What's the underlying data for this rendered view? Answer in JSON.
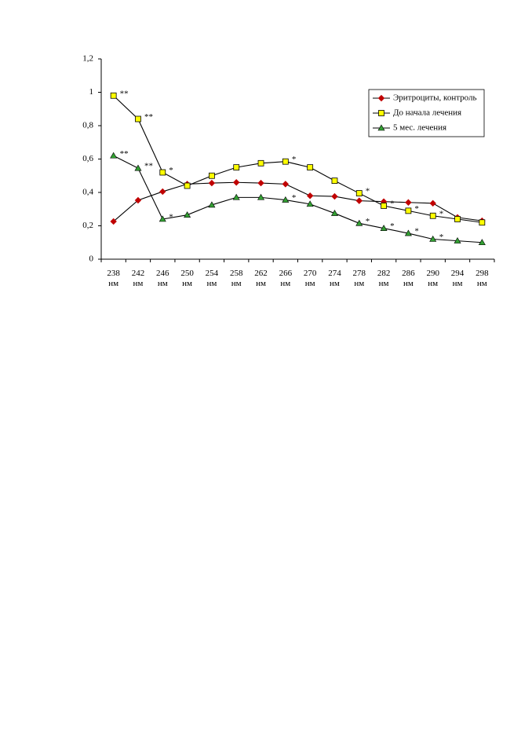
{
  "chart_data": {
    "type": "line",
    "categories": [
      "238 нм",
      "242 нм",
      "246 нм",
      "250 нм",
      "254 нм",
      "258 нм",
      "262 нм",
      "266 нм",
      "270 нм",
      "274 нм",
      "278 нм",
      "282 нм",
      "286 нм",
      "290 нм",
      "294 нм",
      "298 нм"
    ],
    "ylim": [
      0,
      1.2
    ],
    "yticks": [
      0,
      {
        "value": 0.2,
        "label": "0,2"
      },
      {
        "value": 0.4,
        "label": "0,4"
      },
      {
        "value": 0.6,
        "label": "0,6"
      },
      {
        "value": 0.8,
        "label": "0,8"
      },
      1,
      {
        "value": 1.2,
        "label": "1,2"
      }
    ],
    "grid": false,
    "line_color": "#000000",
    "legend": "top-right",
    "series": [
      {
        "name": "Эритроциты, контроль",
        "color": "#c00000",
        "marker": "diamond",
        "values": [
          0.226,
          0.353,
          0.405,
          0.45,
          0.456,
          0.46,
          0.456,
          0.45,
          0.38,
          0.376,
          0.35,
          0.345,
          0.34,
          0.335,
          0.25,
          0.23
        ],
        "annotations": [
          null,
          null,
          null,
          null,
          null,
          null,
          null,
          null,
          null,
          null,
          null,
          null,
          null,
          null,
          null,
          null
        ]
      },
      {
        "name": "До начала лечения",
        "color": "#ffff00",
        "marker": "square",
        "values": [
          0.98,
          0.84,
          0.52,
          0.44,
          0.5,
          0.55,
          0.575,
          0.585,
          0.55,
          0.47,
          0.395,
          0.32,
          0.29,
          0.26,
          0.24,
          0.22
        ],
        "annotations": [
          "**",
          "**",
          "*",
          null,
          null,
          null,
          null,
          "*",
          null,
          null,
          "*",
          "*",
          "*",
          "*",
          null,
          null
        ]
      },
      {
        "name": "5 мес. лечения",
        "color": "#33a033",
        "marker": "triangle",
        "values": [
          0.62,
          0.545,
          0.24,
          0.265,
          0.325,
          0.37,
          0.37,
          0.355,
          0.33,
          0.275,
          0.215,
          0.185,
          0.155,
          0.12,
          0.11,
          0.1
        ],
        "annotations": [
          "**",
          "**",
          "*",
          null,
          null,
          null,
          null,
          "*",
          null,
          null,
          "*",
          "*",
          "*",
          "*",
          null,
          null
        ]
      }
    ]
  }
}
